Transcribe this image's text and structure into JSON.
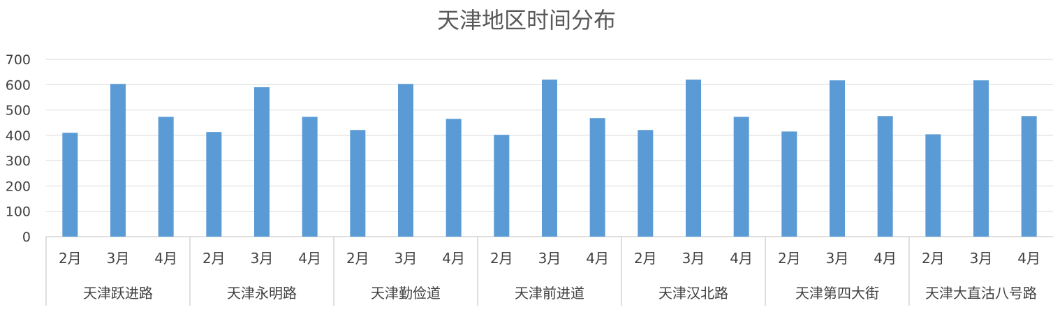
{
  "chart_data": {
    "type": "bar",
    "title": "天津地区时间分布",
    "xlabel": "",
    "ylabel": "",
    "ylim": [
      0,
      700
    ],
    "yticks": [
      0,
      100,
      200,
      300,
      400,
      500,
      600,
      700
    ],
    "grid": true,
    "legend": "none",
    "bar_color": "#5B9BD5",
    "groups": [
      {
        "name": "天津跃进路",
        "categories": [
          "2月",
          "3月",
          "4月"
        ],
        "values": [
          410,
          603,
          473
        ]
      },
      {
        "name": "天津永明路",
        "categories": [
          "2月",
          "3月",
          "4月"
        ],
        "values": [
          413,
          590,
          473
        ]
      },
      {
        "name": "天津勤俭道",
        "categories": [
          "2月",
          "3月",
          "4月"
        ],
        "values": [
          421,
          603,
          465
        ]
      },
      {
        "name": "天津前进道",
        "categories": [
          "2月",
          "3月",
          "4月"
        ],
        "values": [
          402,
          620,
          468
        ]
      },
      {
        "name": "天津汉北路",
        "categories": [
          "2月",
          "3月",
          "4月"
        ],
        "values": [
          421,
          620,
          473
        ]
      },
      {
        "name": "天津第四大街",
        "categories": [
          "2月",
          "3月",
          "4月"
        ],
        "values": [
          415,
          617,
          476
        ]
      },
      {
        "name": "天津大直沽八号路",
        "categories": [
          "2月",
          "3月",
          "4月"
        ],
        "values": [
          404,
          617,
          476
        ]
      }
    ]
  }
}
